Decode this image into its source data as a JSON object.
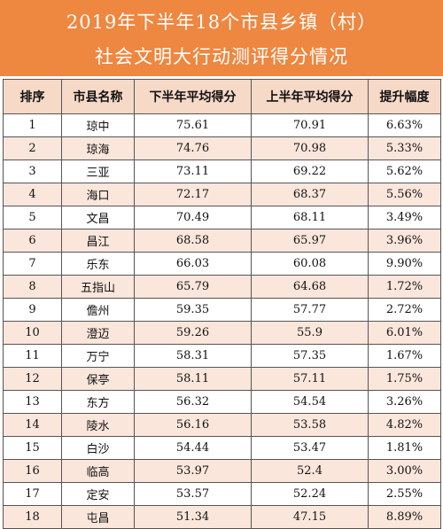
{
  "title": {
    "line1": "2019年下半年18个市县乡镇（村）",
    "line2": "社会文明大行动测评得分情况"
  },
  "table": {
    "headers": [
      "排序",
      "市县名称",
      "下半年平均得分",
      "上半年平均得分",
      "提升幅度"
    ],
    "rows": [
      [
        "1",
        "琼中",
        "75.61",
        "70.91",
        "6.63%"
      ],
      [
        "2",
        "琼海",
        "74.76",
        "70.98",
        "5.33%"
      ],
      [
        "3",
        "三亚",
        "73.11",
        "69.22",
        "5.62%"
      ],
      [
        "4",
        "海口",
        "72.17",
        "68.37",
        "5.56%"
      ],
      [
        "5",
        "文昌",
        "70.49",
        "68.11",
        "3.49%"
      ],
      [
        "6",
        "昌江",
        "68.58",
        "65.97",
        "3.96%"
      ],
      [
        "7",
        "乐东",
        "66.03",
        "60.08",
        "9.90%"
      ],
      [
        "8",
        "五指山",
        "65.79",
        "64.68",
        "1.72%"
      ],
      [
        "9",
        "儋州",
        "59.35",
        "57.77",
        "2.72%"
      ],
      [
        "10",
        "澄迈",
        "59.26",
        "55.9",
        "6.01%"
      ],
      [
        "11",
        "万宁",
        "58.31",
        "57.35",
        "1.67%"
      ],
      [
        "12",
        "保亭",
        "58.11",
        "57.11",
        "1.75%"
      ],
      [
        "13",
        "东方",
        "56.32",
        "54.54",
        "3.26%"
      ],
      [
        "14",
        "陵水",
        "56.16",
        "53.58",
        "4.82%"
      ],
      [
        "15",
        "白沙",
        "54.44",
        "53.47",
        "1.81%"
      ],
      [
        "16",
        "临高",
        "53.97",
        "52.4",
        "3.00%"
      ],
      [
        "17",
        "定安",
        "53.57",
        "52.24",
        "2.55%"
      ],
      [
        "18",
        "屯昌",
        "51.34",
        "47.15",
        "8.89%"
      ]
    ]
  },
  "colors": {
    "title_bg": "#ee8740",
    "header_bg": "#f6d9c7",
    "stripe_bg": "#fbe6dc"
  }
}
